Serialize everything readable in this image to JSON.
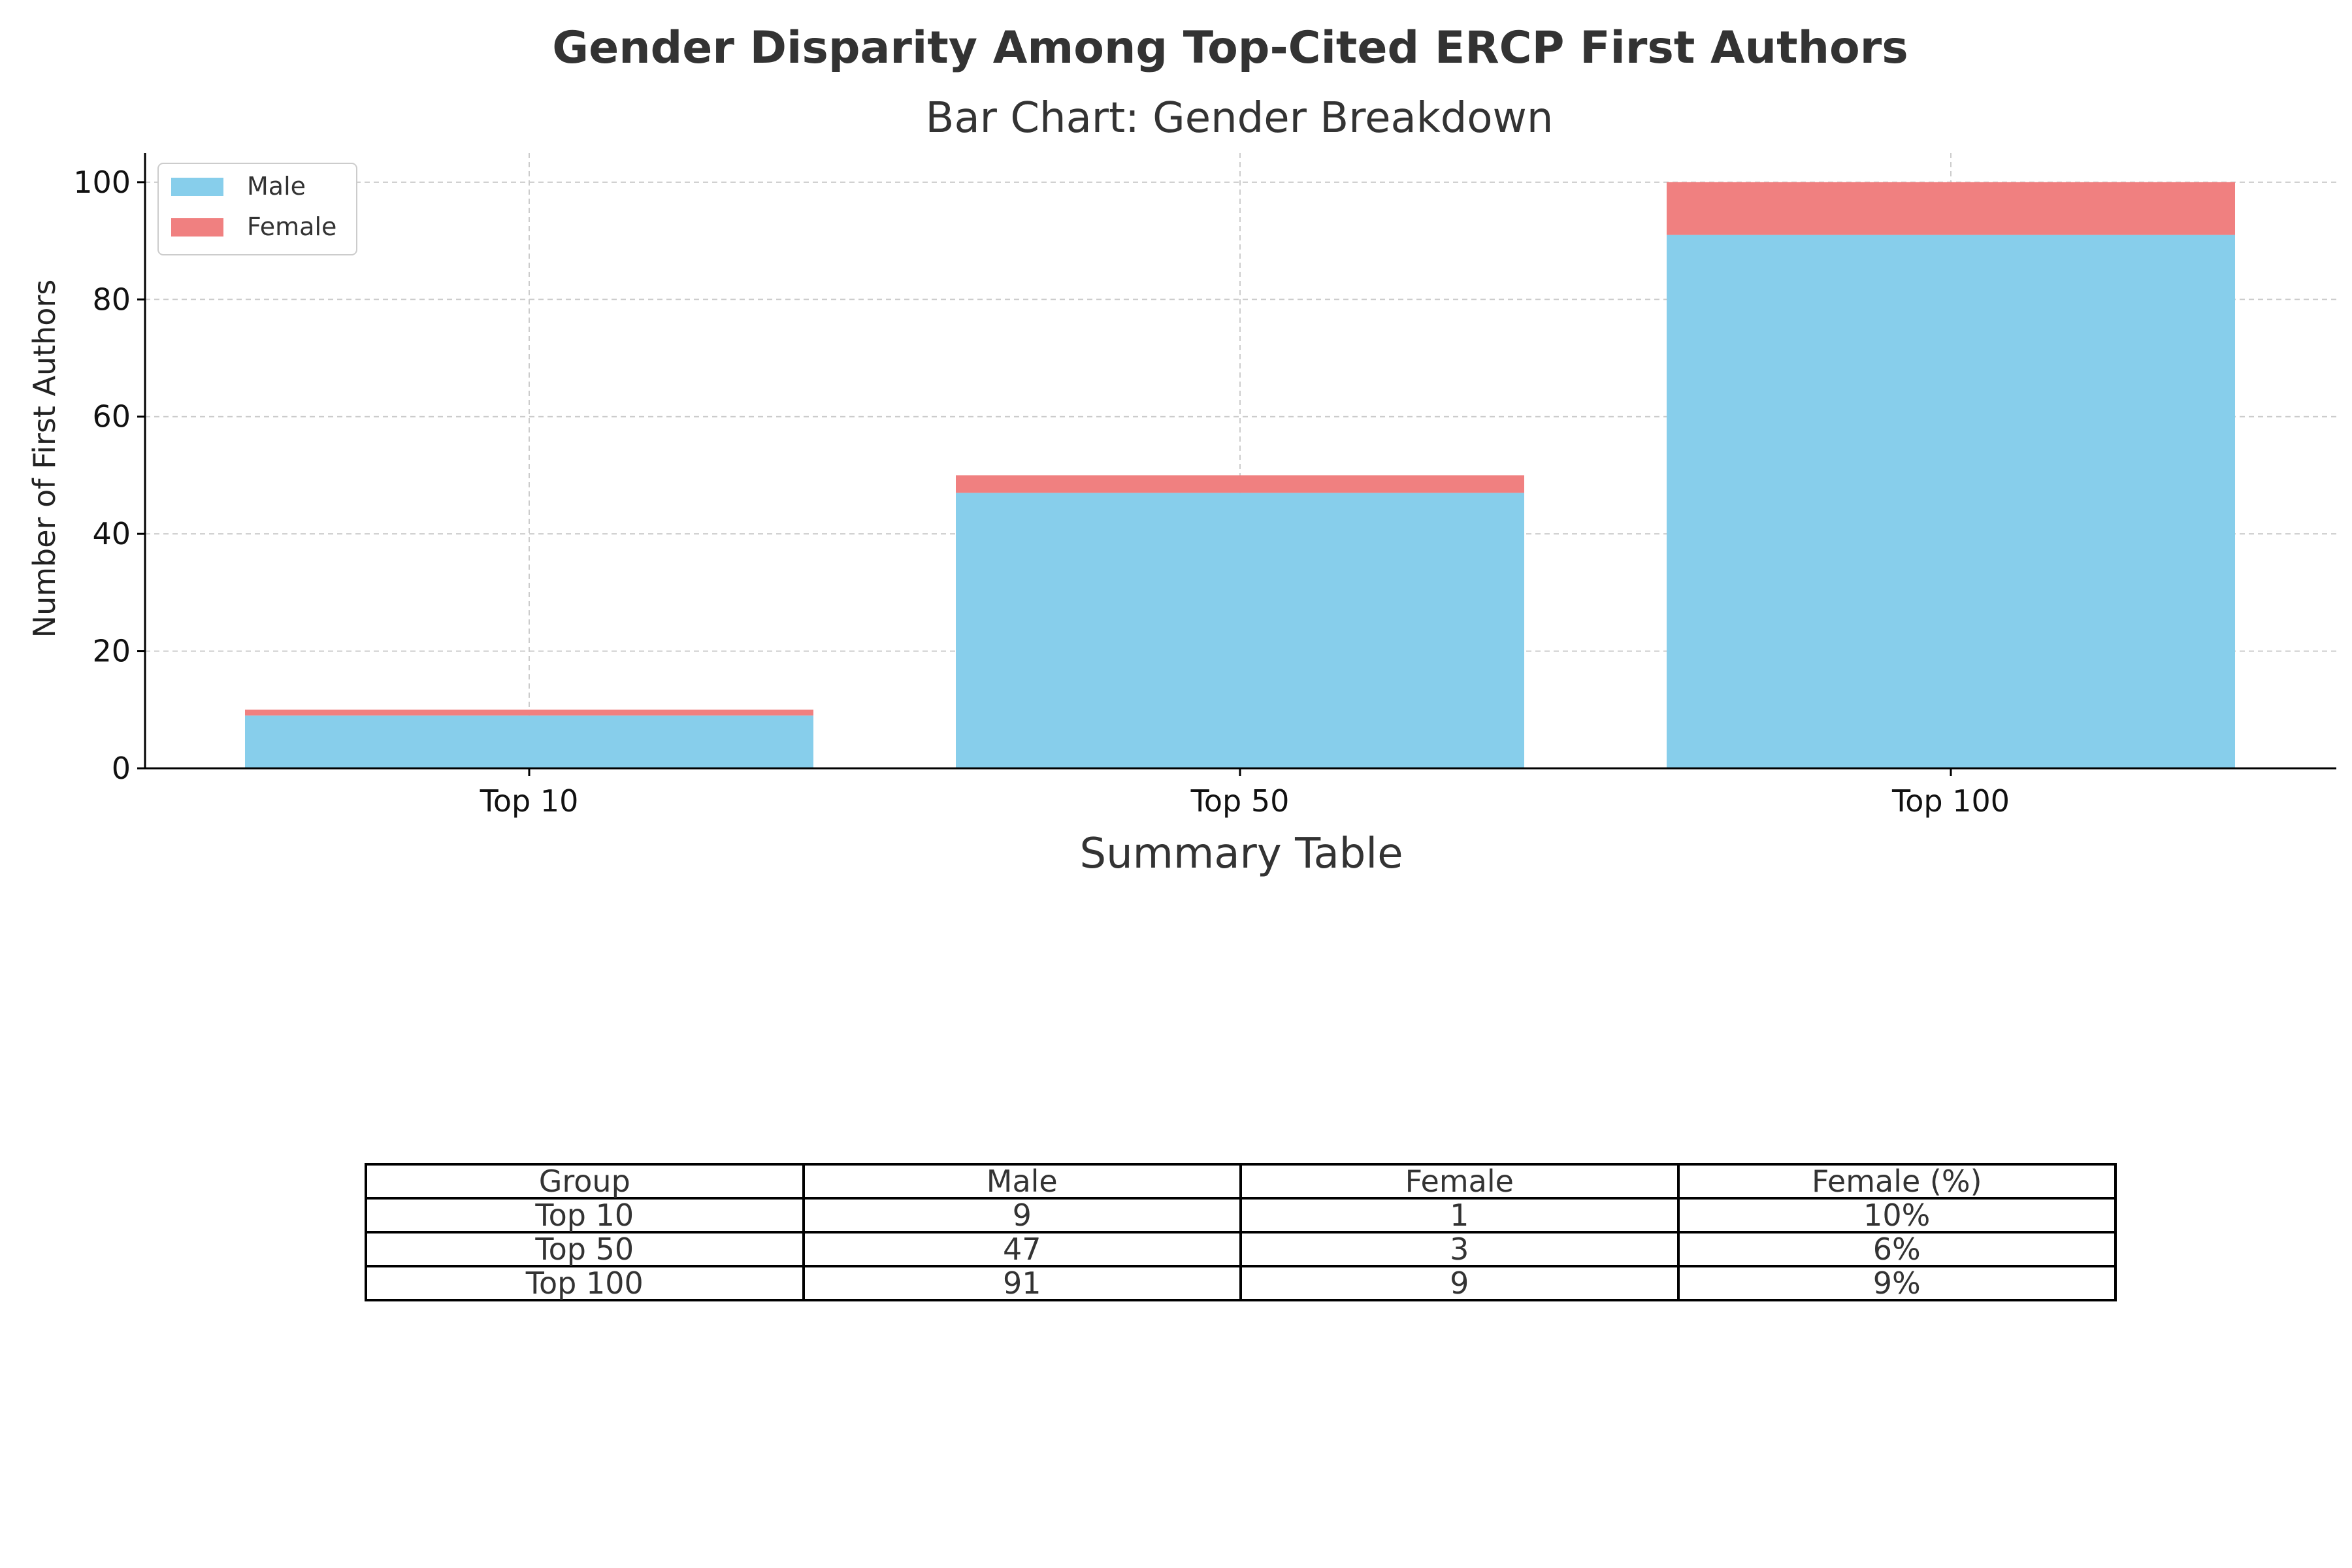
{
  "chart_data": {
    "type": "bar",
    "stacked": true,
    "title": "Gender Disparity Among Top-Cited ERCP First Authors",
    "subtitle": "Bar Chart: Gender Breakdown",
    "xlabel": "",
    "ylabel": "Number of First Authors",
    "categories": [
      "Top 10",
      "Top 50",
      "Top 100"
    ],
    "series": [
      {
        "name": "Male",
        "values": [
          9,
          47,
          91
        ],
        "color": "#87ceeb"
      },
      {
        "name": "Female",
        "values": [
          1,
          3,
          9
        ],
        "color": "#f08080"
      }
    ],
    "ylim": [
      0,
      105
    ],
    "yticks": [
      0,
      20,
      40,
      60,
      80,
      100
    ],
    "grid": true,
    "legend_position": "upper-left"
  },
  "table": {
    "title": "Summary Table",
    "headers": [
      "Group",
      "Male",
      "Female",
      "Female (%)"
    ],
    "rows": [
      [
        "Top 10",
        "9",
        "1",
        "10%"
      ],
      [
        "Top 50",
        "47",
        "3",
        "6%"
      ],
      [
        "Top 100",
        "91",
        "9",
        "9%"
      ]
    ]
  }
}
